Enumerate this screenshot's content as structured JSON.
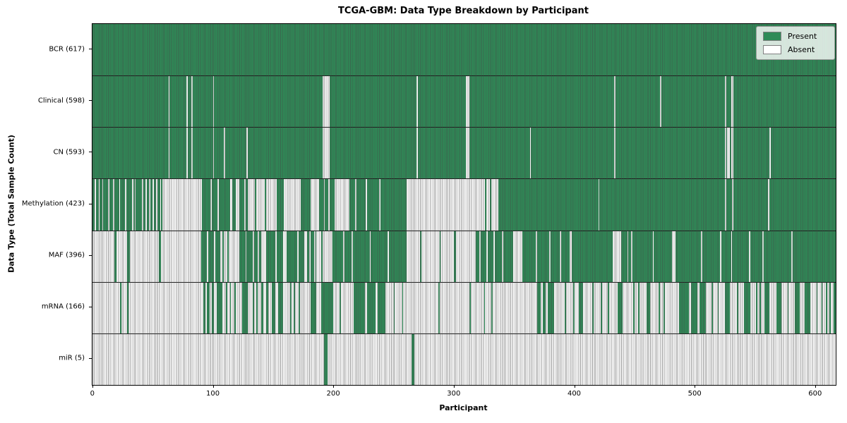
{
  "title": "TCGA-GBM: Data Type Breakdown by Participant",
  "xlabel": "Participant",
  "ylabel": "Data Type (Total Sample Count)",
  "legend": {
    "present_label": "Present",
    "absent_label": "Absent"
  },
  "colors": {
    "present": "#2e8b57",
    "absent": "#ffffff",
    "edge": "#808080",
    "separator": "#1a1a1a"
  },
  "chart_data": {
    "type": "heatmap",
    "title": "TCGA-GBM: Data Type Breakdown by Participant",
    "xlabel": "Participant",
    "ylabel": "Data Type (Total Sample Count)",
    "legend_entries": [
      "Present",
      "Absent"
    ],
    "legend_position": "upper right",
    "x_ticks": [
      0,
      100,
      200,
      300,
      400,
      500,
      600
    ],
    "xlim": [
      0,
      617
    ],
    "n_participants": 617,
    "rows": [
      {
        "name": "BCR",
        "label": "BCR (617)",
        "present_count": 617,
        "present_runs": [
          [
            0,
            617
          ]
        ]
      },
      {
        "name": "Clinical",
        "label": "Clinical (598)",
        "present_count": 598,
        "present_runs": [
          [
            0,
            63
          ],
          [
            64,
            78
          ],
          [
            79,
            82
          ],
          [
            83,
            100
          ],
          [
            101,
            191
          ],
          [
            197,
            269
          ],
          [
            270,
            310
          ],
          [
            313,
            433
          ],
          [
            434,
            471
          ],
          [
            472,
            525
          ],
          [
            526,
            530
          ],
          [
            532,
            617
          ]
        ]
      },
      {
        "name": "CN",
        "label": "CN (593)",
        "present_count": 593,
        "present_runs": [
          [
            0,
            63
          ],
          [
            64,
            78
          ],
          [
            79,
            82
          ],
          [
            83,
            100
          ],
          [
            101,
            109
          ],
          [
            110,
            128
          ],
          [
            129,
            191
          ],
          [
            197,
            269
          ],
          [
            270,
            310
          ],
          [
            313,
            363
          ],
          [
            364,
            433
          ],
          [
            434,
            525
          ],
          [
            526,
            527
          ],
          [
            529,
            530
          ],
          [
            532,
            562
          ],
          [
            563,
            617
          ]
        ]
      },
      {
        "name": "Methylation",
        "label": "Methylation (423)",
        "present_count": 423,
        "present_runs": [
          [
            0,
            2
          ],
          [
            3,
            5
          ],
          [
            6,
            8
          ],
          [
            9,
            13
          ],
          [
            14,
            17
          ],
          [
            18,
            22
          ],
          [
            23,
            27
          ],
          [
            28,
            33
          ],
          [
            34,
            35
          ],
          [
            36,
            41
          ],
          [
            42,
            44
          ],
          [
            45,
            47
          ],
          [
            48,
            50
          ],
          [
            51,
            53
          ],
          [
            54,
            56
          ],
          [
            57,
            58
          ],
          [
            91,
            98
          ],
          [
            99,
            104
          ],
          [
            105,
            114
          ],
          [
            116,
            119
          ],
          [
            122,
            126
          ],
          [
            127,
            129
          ],
          [
            135,
            136
          ],
          [
            143,
            144
          ],
          [
            153,
            159
          ],
          [
            173,
            181
          ],
          [
            188,
            192
          ],
          [
            193,
            196
          ],
          [
            197,
            201
          ],
          [
            213,
            218
          ],
          [
            219,
            227
          ],
          [
            228,
            238
          ],
          [
            239,
            261
          ],
          [
            326,
            327
          ],
          [
            330,
            331
          ],
          [
            337,
            420
          ],
          [
            421,
            525
          ],
          [
            526,
            531
          ],
          [
            532,
            561
          ],
          [
            562,
            617
          ]
        ]
      },
      {
        "name": "MAF",
        "label": "MAF (396)",
        "present_count": 396,
        "present_runs": [
          [
            18,
            20
          ],
          [
            29,
            31
          ],
          [
            55,
            57
          ],
          [
            90,
            95
          ],
          [
            96,
            101
          ],
          [
            102,
            106
          ],
          [
            108,
            109
          ],
          [
            112,
            113
          ],
          [
            122,
            127
          ],
          [
            128,
            133
          ],
          [
            134,
            137
          ],
          [
            138,
            140
          ],
          [
            144,
            152
          ],
          [
            153,
            158
          ],
          [
            161,
            170
          ],
          [
            171,
            176
          ],
          [
            178,
            180
          ],
          [
            181,
            184
          ],
          [
            185,
            186
          ],
          [
            190,
            191
          ],
          [
            199,
            208
          ],
          [
            209,
            215
          ],
          [
            216,
            230
          ],
          [
            231,
            245
          ],
          [
            246,
            261
          ],
          [
            272,
            273
          ],
          [
            288,
            289
          ],
          [
            300,
            302
          ],
          [
            318,
            321
          ],
          [
            322,
            327
          ],
          [
            328,
            333
          ],
          [
            334,
            340
          ],
          [
            341,
            349
          ],
          [
            357,
            368
          ],
          [
            369,
            379
          ],
          [
            380,
            388
          ],
          [
            389,
            396
          ],
          [
            398,
            432
          ],
          [
            439,
            444
          ],
          [
            445,
            447
          ],
          [
            448,
            465
          ],
          [
            466,
            481
          ],
          [
            484,
            505
          ],
          [
            506,
            521
          ],
          [
            522,
            530
          ],
          [
            531,
            545
          ],
          [
            546,
            556
          ],
          [
            557,
            580
          ],
          [
            581,
            617
          ]
        ]
      },
      {
        "name": "mRNA",
        "label": "mRNA (166)",
        "present_count": 166,
        "present_runs": [
          [
            23,
            24
          ],
          [
            29,
            30
          ],
          [
            92,
            94
          ],
          [
            95,
            97
          ],
          [
            99,
            101
          ],
          [
            103,
            108
          ],
          [
            111,
            112
          ],
          [
            114,
            115
          ],
          [
            118,
            119
          ],
          [
            124,
            129
          ],
          [
            133,
            134
          ],
          [
            136,
            137
          ],
          [
            140,
            142
          ],
          [
            144,
            146
          ],
          [
            149,
            152
          ],
          [
            154,
            158
          ],
          [
            164,
            165
          ],
          [
            167,
            168
          ],
          [
            171,
            172
          ],
          [
            181,
            186
          ],
          [
            190,
            200
          ],
          [
            205,
            206
          ],
          [
            217,
            226
          ],
          [
            228,
            235
          ],
          [
            237,
            243
          ],
          [
            250,
            251
          ],
          [
            257,
            258
          ],
          [
            287,
            288
          ],
          [
            313,
            314
          ],
          [
            325,
            326
          ],
          [
            331,
            332
          ],
          [
            369,
            372
          ],
          [
            374,
            376
          ],
          [
            378,
            383
          ],
          [
            392,
            393
          ],
          [
            399,
            400
          ],
          [
            404,
            407
          ],
          [
            415,
            416
          ],
          [
            422,
            423
          ],
          [
            428,
            429
          ],
          [
            436,
            440
          ],
          [
            449,
            450
          ],
          [
            453,
            454
          ],
          [
            460,
            463
          ],
          [
            470,
            471
          ],
          [
            474,
            475
          ],
          [
            487,
            495
          ],
          [
            497,
            502
          ],
          [
            504,
            509
          ],
          [
            514,
            515
          ],
          [
            519,
            520
          ],
          [
            525,
            529
          ],
          [
            535,
            536
          ],
          [
            541,
            546
          ],
          [
            551,
            552
          ],
          [
            554,
            555
          ],
          [
            558,
            562
          ],
          [
            568,
            572
          ],
          [
            577,
            578
          ],
          [
            583,
            587
          ],
          [
            591,
            596
          ],
          [
            601,
            602
          ],
          [
            605,
            606
          ],
          [
            609,
            610
          ],
          [
            612,
            613
          ],
          [
            615,
            617
          ]
        ]
      },
      {
        "name": "miR",
        "label": "miR (5)",
        "present_count": 5,
        "present_runs": [
          [
            192,
            195
          ],
          [
            265,
            267
          ]
        ]
      }
    ]
  }
}
